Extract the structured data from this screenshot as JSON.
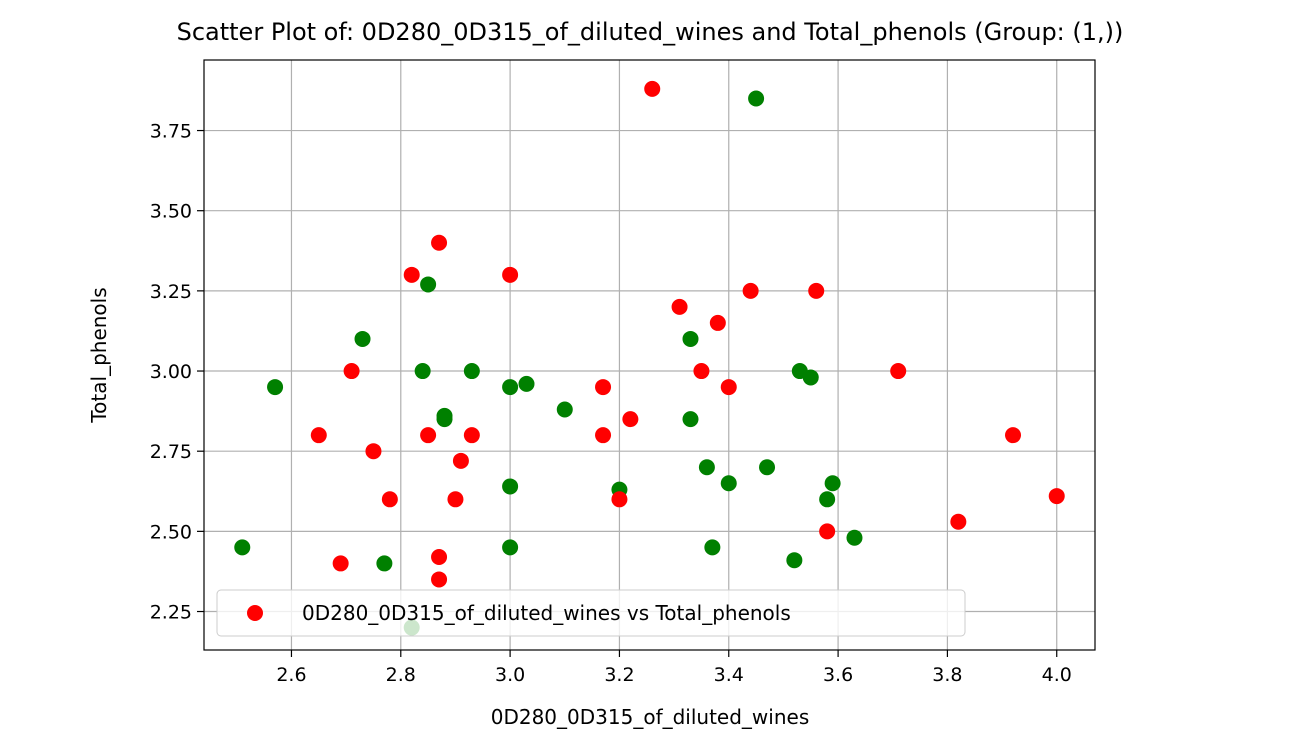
{
  "chart_data": {
    "type": "scatter",
    "title": "Scatter Plot of: 0D280_0D315_of_diluted_wines and Total_phenols (Group: (1,))",
    "xlabel": "0D280_0D315_of_diluted_wines",
    "ylabel": "Total_phenols",
    "xlim": [
      2.44,
      4.07
    ],
    "ylim": [
      2.13,
      3.97
    ],
    "xticks": [
      2.6,
      2.8,
      3.0,
      3.2,
      3.4,
      3.6,
      3.8,
      4.0
    ],
    "xtick_labels": [
      "2.6",
      "2.8",
      "3.0",
      "3.2",
      "3.4",
      "3.6",
      "3.8",
      "4.0"
    ],
    "yticks": [
      2.25,
      2.5,
      2.75,
      3.0,
      3.25,
      3.5,
      3.75
    ],
    "ytick_labels": [
      "2.25",
      "2.50",
      "2.75",
      "3.00",
      "3.25",
      "3.50",
      "3.75"
    ],
    "grid": true,
    "legend_position": "lower-left",
    "legend": [
      "0D280_0D315_of_diluted_wines vs Total_phenols"
    ],
    "series": [
      {
        "color": "#008000",
        "points": [
          [
            2.51,
            2.45
          ],
          [
            2.57,
            2.95
          ],
          [
            2.73,
            3.1
          ],
          [
            2.77,
            2.4
          ],
          [
            2.82,
            2.2
          ],
          [
            2.84,
            3.0
          ],
          [
            2.85,
            3.27
          ],
          [
            2.88,
            2.85
          ],
          [
            2.88,
            2.86
          ],
          [
            2.93,
            3.0
          ],
          [
            3.0,
            2.95
          ],
          [
            3.0,
            2.64
          ],
          [
            3.0,
            2.45
          ],
          [
            3.03,
            2.96
          ],
          [
            3.1,
            2.88
          ],
          [
            3.2,
            2.63
          ],
          [
            3.33,
            3.1
          ],
          [
            3.33,
            2.85
          ],
          [
            3.36,
            2.7
          ],
          [
            3.37,
            2.45
          ],
          [
            3.4,
            2.65
          ],
          [
            3.45,
            3.85
          ],
          [
            3.47,
            2.7
          ],
          [
            3.52,
            2.41
          ],
          [
            3.53,
            3.0
          ],
          [
            3.55,
            2.98
          ],
          [
            3.58,
            2.6
          ],
          [
            3.59,
            2.65
          ],
          [
            3.63,
            2.48
          ]
        ]
      },
      {
        "color": "#ff0000",
        "points": [
          [
            2.65,
            2.8
          ],
          [
            2.69,
            2.4
          ],
          [
            2.71,
            3.0
          ],
          [
            2.75,
            2.75
          ],
          [
            2.78,
            2.6
          ],
          [
            2.82,
            3.3
          ],
          [
            2.85,
            2.8
          ],
          [
            2.87,
            3.4
          ],
          [
            2.87,
            2.42
          ],
          [
            2.87,
            2.35
          ],
          [
            2.9,
            2.6
          ],
          [
            2.91,
            2.72
          ],
          [
            2.93,
            2.8
          ],
          [
            3.0,
            3.3
          ],
          [
            3.17,
            2.95
          ],
          [
            3.17,
            2.8
          ],
          [
            3.2,
            2.6
          ],
          [
            3.22,
            2.85
          ],
          [
            3.26,
            3.88
          ],
          [
            3.31,
            3.2
          ],
          [
            3.35,
            3.0
          ],
          [
            3.38,
            3.15
          ],
          [
            3.4,
            2.95
          ],
          [
            3.44,
            3.25
          ],
          [
            3.56,
            3.25
          ],
          [
            3.58,
            2.5
          ],
          [
            3.71,
            3.0
          ],
          [
            3.82,
            2.53
          ],
          [
            3.92,
            2.8
          ],
          [
            4.0,
            2.61
          ]
        ]
      }
    ]
  }
}
